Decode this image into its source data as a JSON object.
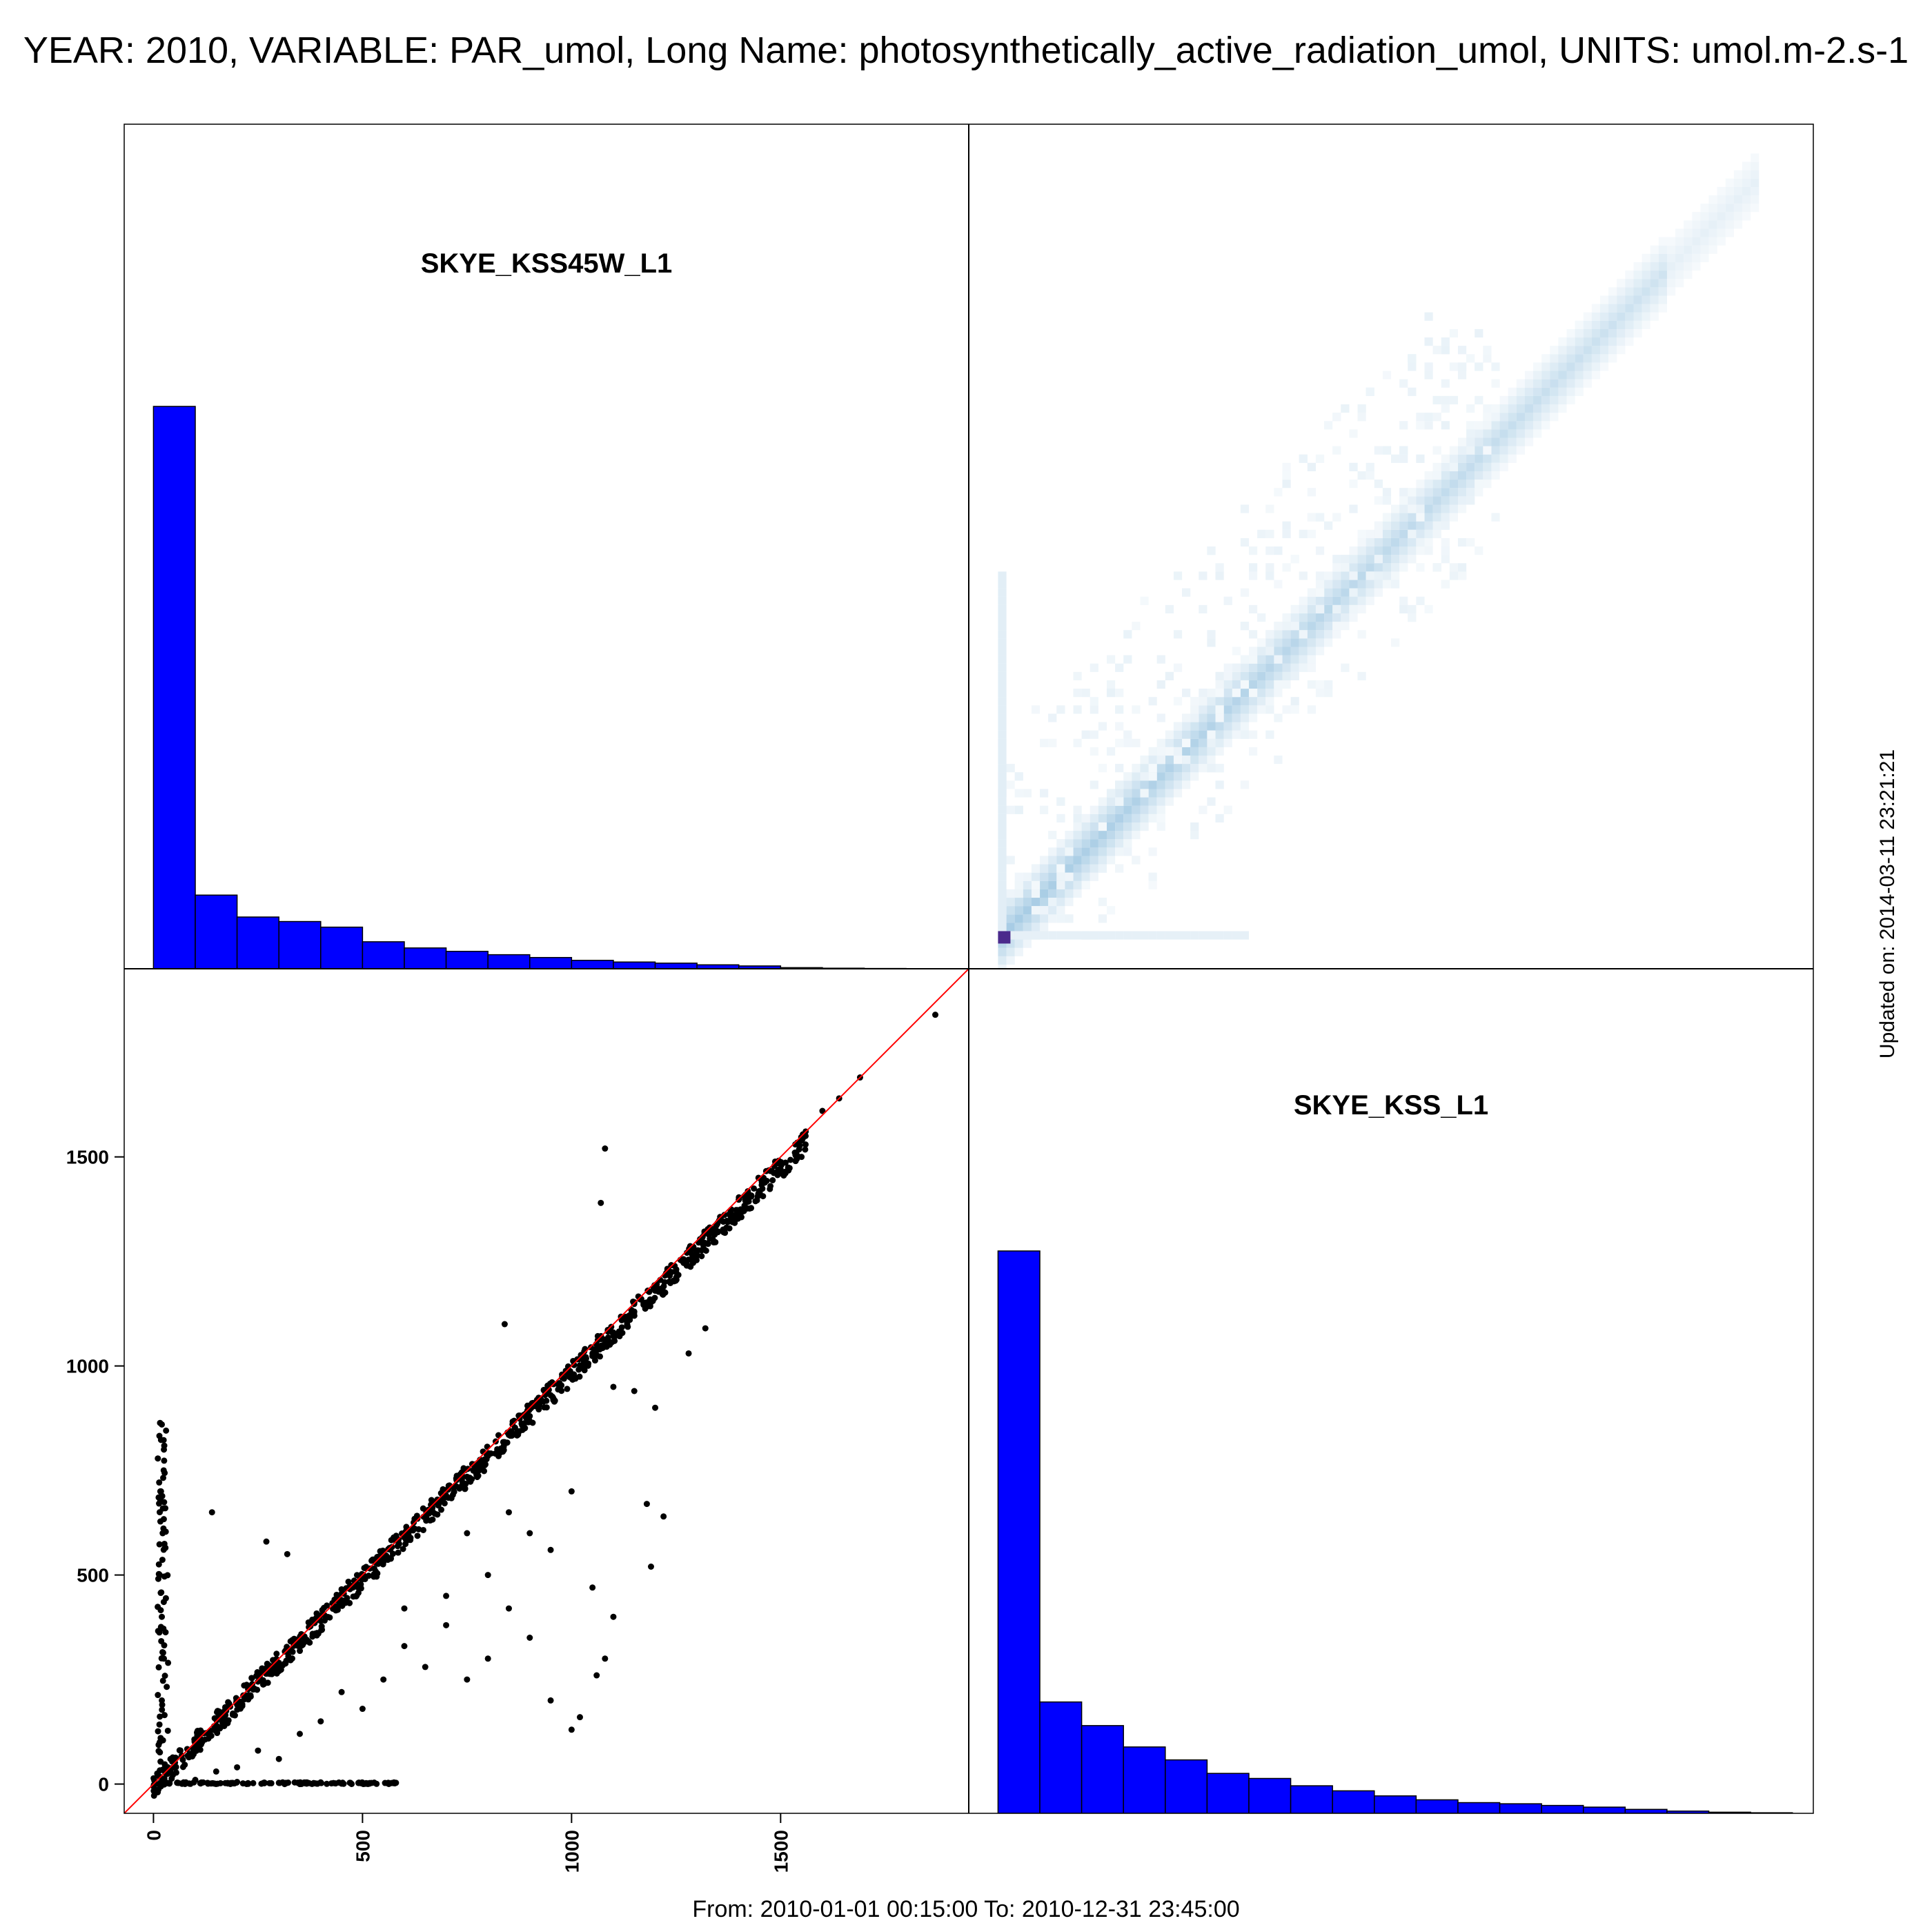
{
  "title": "YEAR: 2010, VARIABLE: PAR_umol, Long Name: photosynthetically_active_radiation_umol, UNITS: umol.m-2.s-1",
  "footer": "From: 2010-01-01 00:15:00 To: 2010-12-31 23:45:00",
  "updated": "Updated on: 2014-03-11 23:21:21",
  "colors": {
    "histogram_fill": "#0000ff",
    "one_to_one_line": "#ff0000",
    "points": "#000000",
    "density_base": "#2f86c0",
    "density_peak": "#4b2a8c"
  },
  "chart_data": [
    {
      "type": "bar",
      "panel": "top-left",
      "title": "SKYE_KSS45W_L1",
      "xlim": [
        -70,
        1950
      ],
      "bin_edges": [
        0,
        100,
        200,
        300,
        400,
        500,
        600,
        700,
        800,
        900,
        1000,
        1100,
        1200,
        1300,
        1400,
        1500,
        1600,
        1700,
        1800,
        1900
      ],
      "values": [
        1.0,
        0.131,
        0.092,
        0.084,
        0.074,
        0.048,
        0.037,
        0.031,
        0.025,
        0.02,
        0.015,
        0.012,
        0.01,
        0.007,
        0.005,
        0.002,
        0.001,
        0.0005,
        0.0003
      ]
    },
    {
      "type": "heatmap",
      "panel": "top-right",
      "description_of_axes": "SKYE_KSS_L1 (x) vs SKYE_KSS45W_L1 (y)",
      "xlim": [
        -70,
        1950
      ],
      "ylim": [
        -70,
        1950
      ],
      "density": [
        {
          "x": 10,
          "y": 10,
          "level": 1.0
        },
        {
          "x": 100,
          "y": 100,
          "level": 0.45
        },
        {
          "x": 300,
          "y": 300,
          "level": 0.35
        },
        {
          "x": 600,
          "y": 600,
          "level": 0.3
        },
        {
          "x": 900,
          "y": 900,
          "level": 0.28
        },
        {
          "x": 1200,
          "y": 1200,
          "level": 0.25
        },
        {
          "x": 1500,
          "y": 1500,
          "level": 0.2
        },
        {
          "x": 1700,
          "y": 1700,
          "level": 0.08
        },
        {
          "x": 20,
          "y": 600,
          "level": 0.15
        },
        {
          "x": 500,
          "y": 20,
          "level": 0.12
        }
      ]
    },
    {
      "type": "scatter",
      "panel": "bottom-left",
      "xlim": [
        -70,
        1950
      ],
      "ylim": [
        -70,
        1950
      ],
      "xticks": [
        0,
        500,
        1000,
        1500
      ],
      "yticks": [
        0,
        500,
        1000,
        1500
      ],
      "reference_line": "y = x",
      "points": [
        [
          10,
          20
        ],
        [
          50,
          40
        ],
        [
          100,
          95
        ],
        [
          150,
          140
        ],
        [
          200,
          190
        ],
        [
          250,
          245
        ],
        [
          300,
          290
        ],
        [
          350,
          340
        ],
        [
          400,
          390
        ],
        [
          450,
          440
        ],
        [
          500,
          490
        ],
        [
          550,
          540
        ],
        [
          600,
          590
        ],
        [
          650,
          640
        ],
        [
          700,
          690
        ],
        [
          750,
          735
        ],
        [
          800,
          785
        ],
        [
          850,
          835
        ],
        [
          900,
          880
        ],
        [
          950,
          930
        ],
        [
          1000,
          980
        ],
        [
          1050,
          1030
        ],
        [
          1100,
          1080
        ],
        [
          1150,
          1130
        ],
        [
          1200,
          1180
        ],
        [
          1250,
          1225
        ],
        [
          1300,
          1275
        ],
        [
          1350,
          1320
        ],
        [
          1400,
          1370
        ],
        [
          1450,
          1415
        ],
        [
          1500,
          1470
        ],
        [
          1550,
          1500
        ],
        [
          1600,
          1610
        ],
        [
          1640,
          1640
        ],
        [
          1690,
          1690
        ],
        [
          1870,
          1840
        ],
        [
          20,
          860
        ],
        [
          25,
          800
        ],
        [
          18,
          700
        ],
        [
          22,
          600
        ],
        [
          15,
          500
        ],
        [
          20,
          400
        ],
        [
          25,
          300
        ],
        [
          20,
          200
        ],
        [
          15,
          100
        ],
        [
          140,
          650
        ],
        [
          270,
          580
        ],
        [
          320,
          550
        ],
        [
          840,
          1100
        ],
        [
          1070,
          1390
        ],
        [
          1080,
          1520
        ],
        [
          1100,
          950
        ],
        [
          1150,
          940
        ],
        [
          1200,
          900
        ],
        [
          1280,
          1030
        ],
        [
          1320,
          1090
        ],
        [
          1180,
          670
        ],
        [
          1220,
          640
        ],
        [
          1190,
          520
        ],
        [
          1050,
          470
        ],
        [
          1100,
          400
        ],
        [
          1080,
          300
        ],
        [
          1060,
          260
        ],
        [
          1000,
          130
        ],
        [
          1020,
          160
        ],
        [
          950,
          200
        ],
        [
          900,
          350
        ],
        [
          850,
          420
        ],
        [
          800,
          300
        ],
        [
          750,
          250
        ],
        [
          700,
          380
        ],
        [
          650,
          280
        ],
        [
          600,
          330
        ],
        [
          550,
          250
        ],
        [
          500,
          180
        ],
        [
          450,
          220
        ],
        [
          400,
          150
        ],
        [
          350,
          120
        ],
        [
          300,
          60
        ],
        [
          250,
          80
        ],
        [
          200,
          40
        ],
        [
          150,
          30
        ],
        [
          100,
          10
        ],
        [
          200,
          5
        ],
        [
          300,
          3
        ],
        [
          400,
          4
        ],
        [
          500,
          2
        ],
        [
          580,
          3
        ],
        [
          350,
          0
        ],
        [
          450,
          1
        ],
        [
          800,
          500
        ],
        [
          900,
          600
        ],
        [
          700,
          450
        ],
        [
          600,
          420
        ],
        [
          1000,
          700
        ],
        [
          950,
          560
        ],
        [
          850,
          650
        ],
        [
          750,
          600
        ]
      ]
    },
    {
      "type": "bar",
      "panel": "bottom-right",
      "title": "SKYE_KSS_L1",
      "xlim": [
        -70,
        1950
      ],
      "bin_edges": [
        0,
        100,
        200,
        300,
        400,
        500,
        600,
        700,
        800,
        900,
        1000,
        1100,
        1200,
        1300,
        1400,
        1500,
        1600,
        1700,
        1800,
        1900
      ],
      "values": [
        1.0,
        0.198,
        0.156,
        0.118,
        0.095,
        0.071,
        0.062,
        0.049,
        0.04,
        0.031,
        0.024,
        0.019,
        0.017,
        0.014,
        0.011,
        0.007,
        0.004,
        0.002,
        0.001
      ]
    }
  ]
}
